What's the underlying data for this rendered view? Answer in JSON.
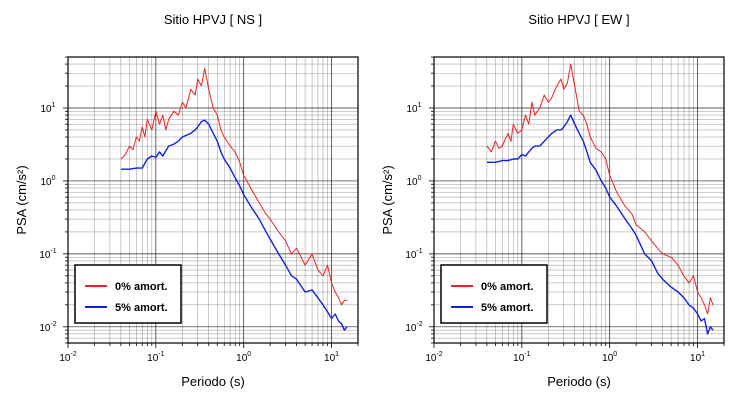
{
  "colors": {
    "series_0": "#ee2222",
    "series_5": "#1122dd",
    "grid": "#000000",
    "frame": "#000000"
  },
  "chart_data": [
    {
      "type": "line",
      "title": "Sitio HPVJ [ NS ]",
      "xlabel": "Periodo (s)",
      "ylabel": "PSA (cm/s²)",
      "xscale": "log",
      "yscale": "log",
      "xlim": [
        0.01,
        20
      ],
      "ylim": [
        0.006,
        50
      ],
      "x_ticks": [
        {
          "value": 0.01,
          "base": "10",
          "exp": "-2"
        },
        {
          "value": 0.1,
          "base": "10",
          "exp": "-1"
        },
        {
          "value": 1,
          "base": "10",
          "exp": "0"
        },
        {
          "value": 10,
          "base": "10",
          "exp": "1"
        }
      ],
      "y_ticks": [
        {
          "value": 0.01,
          "base": "10",
          "exp": "-2"
        },
        {
          "value": 0.1,
          "base": "10",
          "exp": "-1"
        },
        {
          "value": 1,
          "base": "10",
          "exp": "0"
        },
        {
          "value": 10,
          "base": "10",
          "exp": "1"
        }
      ],
      "grid": true,
      "legend_position": "bottom-left",
      "series": [
        {
          "name": "0% amort.",
          "color": "#ee2222",
          "x": [
            0.04,
            0.045,
            0.05,
            0.055,
            0.06,
            0.065,
            0.07,
            0.075,
            0.08,
            0.09,
            0.1,
            0.11,
            0.12,
            0.13,
            0.14,
            0.16,
            0.18,
            0.2,
            0.22,
            0.25,
            0.28,
            0.3,
            0.33,
            0.36,
            0.4,
            0.45,
            0.5,
            0.55,
            0.6,
            0.7,
            0.8,
            0.9,
            1.0,
            1.2,
            1.5,
            1.8,
            2.0,
            2.5,
            3.0,
            3.5,
            4.0,
            5.0,
            6.0,
            7.0,
            8.0,
            9.0,
            10,
            11,
            12,
            13,
            14,
            15
          ],
          "y": [
            2.0,
            2.3,
            3.0,
            2.7,
            4.0,
            3.5,
            5.5,
            4.0,
            7.0,
            5.0,
            9.0,
            6.0,
            8.0,
            5.0,
            7.0,
            9.0,
            8.0,
            12,
            10,
            18,
            15,
            25,
            20,
            35,
            18,
            10,
            8,
            5,
            4,
            3,
            2.5,
            1.8,
            1.2,
            0.8,
            0.5,
            0.35,
            0.3,
            0.2,
            0.15,
            0.1,
            0.12,
            0.07,
            0.1,
            0.06,
            0.05,
            0.07,
            0.04,
            0.03,
            0.025,
            0.02,
            0.023,
            0.023
          ]
        },
        {
          "name": "5% amort.",
          "color": "#1122dd",
          "x": [
            0.04,
            0.05,
            0.06,
            0.07,
            0.08,
            0.09,
            0.1,
            0.11,
            0.12,
            0.13,
            0.14,
            0.16,
            0.18,
            0.2,
            0.22,
            0.25,
            0.28,
            0.3,
            0.33,
            0.36,
            0.4,
            0.45,
            0.5,
            0.55,
            0.6,
            0.7,
            0.8,
            0.9,
            1.0,
            1.2,
            1.5,
            1.8,
            2.0,
            2.5,
            3.0,
            3.5,
            4.0,
            5.0,
            6.0,
            7.0,
            8.0,
            9.0,
            10,
            11,
            12,
            13,
            14,
            15
          ],
          "y": [
            1.45,
            1.45,
            1.5,
            1.5,
            2.0,
            2.2,
            2.1,
            2.5,
            2.2,
            2.6,
            3.0,
            3.2,
            3.5,
            4.0,
            4.2,
            4.5,
            5.0,
            5.5,
            6.5,
            6.8,
            6.0,
            4.5,
            3.5,
            2.5,
            2.0,
            1.5,
            1.1,
            0.85,
            0.65,
            0.45,
            0.3,
            0.2,
            0.16,
            0.1,
            0.07,
            0.05,
            0.045,
            0.03,
            0.032,
            0.025,
            0.02,
            0.016,
            0.013,
            0.015,
            0.012,
            0.011,
            0.009,
            0.01
          ]
        }
      ]
    },
    {
      "type": "line",
      "title": "Sitio HPVJ [ EW ]",
      "xlabel": "Periodo (s)",
      "ylabel": "PSA (cm/s²)",
      "xscale": "log",
      "yscale": "log",
      "xlim": [
        0.01,
        20
      ],
      "ylim": [
        0.006,
        50
      ],
      "x_ticks": [
        {
          "value": 0.01,
          "base": "10",
          "exp": "-2"
        },
        {
          "value": 0.1,
          "base": "10",
          "exp": "-1"
        },
        {
          "value": 1,
          "base": "10",
          "exp": "0"
        },
        {
          "value": 10,
          "base": "10",
          "exp": "1"
        }
      ],
      "y_ticks": [
        {
          "value": 0.01,
          "base": "10",
          "exp": "-2"
        },
        {
          "value": 0.1,
          "base": "10",
          "exp": "-1"
        },
        {
          "value": 1,
          "base": "10",
          "exp": "0"
        },
        {
          "value": 10,
          "base": "10",
          "exp": "1"
        }
      ],
      "grid": true,
      "legend_position": "bottom-left",
      "series": [
        {
          "name": "0% amort.",
          "color": "#ee2222",
          "x": [
            0.04,
            0.045,
            0.05,
            0.055,
            0.06,
            0.065,
            0.07,
            0.075,
            0.08,
            0.09,
            0.1,
            0.11,
            0.12,
            0.13,
            0.14,
            0.16,
            0.18,
            0.2,
            0.22,
            0.25,
            0.28,
            0.3,
            0.33,
            0.36,
            0.4,
            0.45,
            0.5,
            0.55,
            0.6,
            0.7,
            0.8,
            0.9,
            1.0,
            1.2,
            1.5,
            1.8,
            2.0,
            2.5,
            3.0,
            3.5,
            4.0,
            5.0,
            6.0,
            7.0,
            8.0,
            9.0,
            10,
            11,
            12,
            13,
            14,
            15
          ],
          "y": [
            3.0,
            2.5,
            3.5,
            2.8,
            3.0,
            3.8,
            4.5,
            3.5,
            6.0,
            4.5,
            5.0,
            8.0,
            6.0,
            12,
            8.0,
            10,
            15,
            12,
            14,
            20,
            25,
            18,
            22,
            40,
            20,
            9.0,
            8.0,
            6.0,
            4.0,
            2.8,
            2.5,
            2.0,
            1.2,
            0.7,
            0.45,
            0.35,
            0.25,
            0.2,
            0.15,
            0.12,
            0.1,
            0.09,
            0.07,
            0.05,
            0.04,
            0.05,
            0.03,
            0.025,
            0.02,
            0.015,
            0.025,
            0.02
          ]
        },
        {
          "name": "5% amort.",
          "color": "#1122dd",
          "x": [
            0.04,
            0.05,
            0.06,
            0.07,
            0.08,
            0.09,
            0.1,
            0.11,
            0.12,
            0.13,
            0.14,
            0.16,
            0.18,
            0.2,
            0.22,
            0.25,
            0.28,
            0.3,
            0.33,
            0.36,
            0.4,
            0.45,
            0.5,
            0.55,
            0.6,
            0.7,
            0.8,
            0.9,
            1.0,
            1.2,
            1.5,
            1.8,
            2.0,
            2.5,
            3.0,
            3.5,
            4.0,
            5.0,
            6.0,
            7.0,
            8.0,
            9.0,
            10,
            11,
            12,
            13,
            14,
            15
          ],
          "y": [
            1.8,
            1.8,
            1.9,
            1.9,
            2.0,
            2.0,
            2.3,
            2.2,
            2.5,
            2.8,
            3.0,
            3.0,
            3.5,
            4.0,
            4.5,
            5.0,
            5.0,
            5.5,
            6.5,
            8.0,
            6.0,
            4.5,
            3.5,
            2.5,
            1.8,
            1.4,
            1.0,
            0.8,
            0.6,
            0.45,
            0.3,
            0.22,
            0.18,
            0.1,
            0.08,
            0.055,
            0.045,
            0.035,
            0.03,
            0.025,
            0.02,
            0.018,
            0.015,
            0.012,
            0.013,
            0.008,
            0.01,
            0.009
          ]
        }
      ]
    }
  ]
}
